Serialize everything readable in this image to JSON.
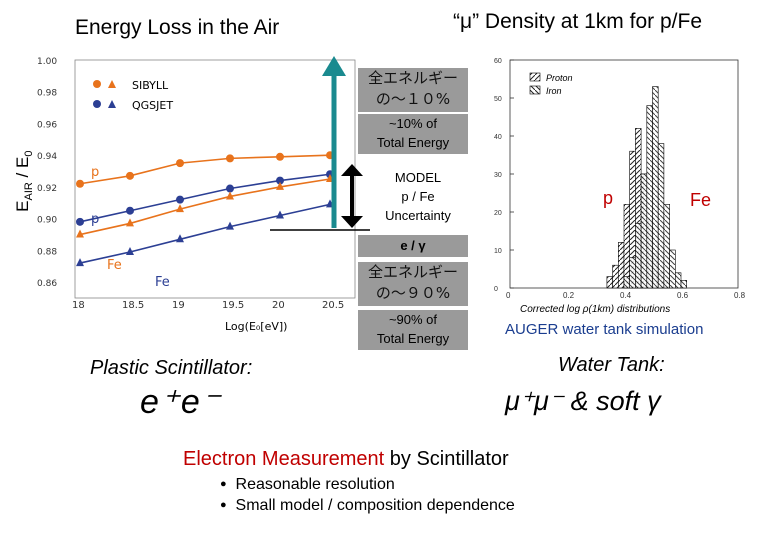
{
  "titles": {
    "left": "Energy Loss in the Air",
    "right": "“μ” Density at 1km for p/Fe"
  },
  "left_chart": {
    "ylabel_main": "E",
    "ylabel_sub1": "AIR",
    "ylabel_mid": " / E",
    "ylabel_sub2": "0",
    "xlabel": "Log(E₀[eV])",
    "legend": [
      "SIBYLL",
      "QGSJET"
    ],
    "labels": {
      "p1": "p",
      "p2": "p",
      "fe1": "Fe",
      "fe2": "Fe"
    }
  },
  "chart_data": {
    "type": "line",
    "x": [
      18,
      18.5,
      19,
      19.5,
      20,
      20.5
    ],
    "xticks": [
      "18",
      "18.5",
      "19",
      "19.5",
      "20",
      "20.5"
    ],
    "yticks": [
      "1.00",
      "0.98",
      "0.96",
      "0.94",
      "0.92",
      "0.90",
      "0.88",
      "0.86"
    ],
    "ylim": [
      0.85,
      1.0
    ],
    "series": [
      {
        "name": "SIBYLL p",
        "color": "#e8731c",
        "marker": "circle",
        "values": [
          0.922,
          0.927,
          0.935,
          0.938,
          0.939,
          0.94
        ]
      },
      {
        "name": "QGSJET p",
        "color": "#2c3f94",
        "marker": "circle",
        "values": [
          0.898,
          0.905,
          0.912,
          0.919,
          0.924,
          0.928
        ]
      },
      {
        "name": "SIBYLL Fe",
        "color": "#e8731c",
        "marker": "triangle",
        "values": [
          0.89,
          0.897,
          0.906,
          0.914,
          0.92,
          0.925
        ]
      },
      {
        "name": "QGSJET Fe",
        "color": "#2c3f94",
        "marker": "triangle",
        "values": [
          0.872,
          0.879,
          0.887,
          0.895,
          0.902,
          0.909
        ]
      }
    ]
  },
  "middle": {
    "jp_top_1": "全エネルギー",
    "jp_top_2": "の～１０%",
    "box_top_1": "~10% of",
    "box_top_2": "Total Energy",
    "model_1": "MODEL",
    "model_2": "p / Fe",
    "model_3": "Uncertainty",
    "egamma": "e / γ",
    "jp_bot_1": "全エネルギー",
    "jp_bot_2": "の～９０%",
    "box_bot_1": "~90% of",
    "box_bot_2": "Total Energy"
  },
  "histogram": {
    "legend": [
      "Proton",
      "Iron"
    ],
    "label_p": "p",
    "label_fe": "Fe",
    "xlabel": "Corrected log ρ(1km) distributions",
    "xticks": [
      "0",
      "0.2",
      "0.4",
      "0.6",
      "0.8"
    ],
    "yticks": [
      "60",
      "50",
      "40",
      "30",
      "20",
      "10",
      "0"
    ],
    "caption": "AUGER water tank simulation"
  },
  "bottom": {
    "plastic_title": "Plastic Scintillator:",
    "plastic_particles": "e⁺e⁻",
    "water_title": "Water Tank:",
    "water_particles": "μ⁺μ⁻ & soft γ",
    "electron_part1": "Electron Measurement",
    "electron_part2": " by Scintillator",
    "bullets": [
      "Reasonable resolution",
      "Small model / composition dependence"
    ]
  },
  "colors": {
    "orange": "#e8731c",
    "blue": "#2c3f94",
    "teal": "#1a8a8f",
    "red": "#c00000"
  }
}
